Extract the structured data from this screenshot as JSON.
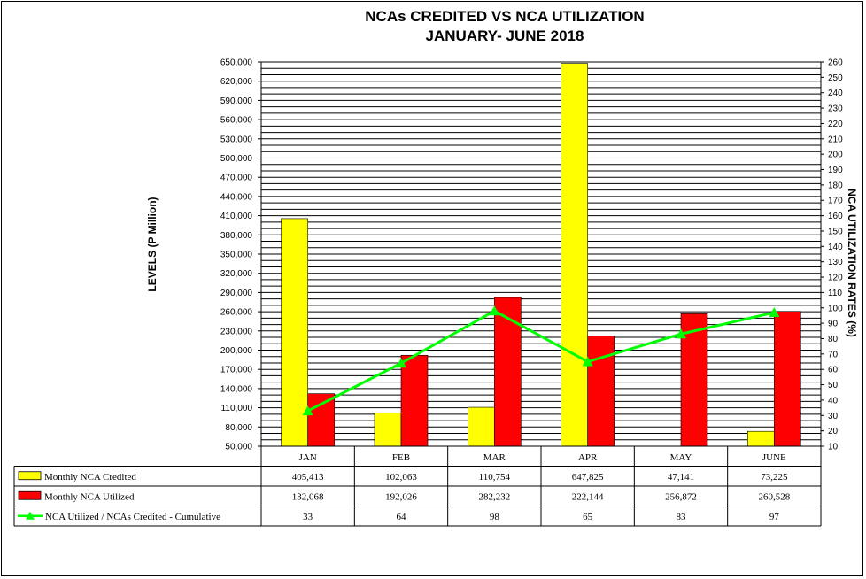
{
  "chart_data": {
    "type": "bar",
    "title": "NCAs CREDITED VS NCA UTILIZATION",
    "subtitle": "JANUARY- JUNE 2018",
    "ylabel": "LEVELS (P Million)",
    "y2label": "NCA UTILIZATION RATES (%)",
    "categories": [
      "JAN",
      "FEB",
      "MAR",
      "APR",
      "MAY",
      "JUNE"
    ],
    "ylim": [
      50000,
      650000
    ],
    "y2lim": [
      10,
      260
    ],
    "yticks": [
      "650,000",
      "620,000",
      "590,000",
      "560,000",
      "530,000",
      "500,000",
      "470,000",
      "440,000",
      "410,000",
      "380,000",
      "350,000",
      "320,000",
      "290,000",
      "260,000",
      "230,000",
      "200,000",
      "170,000",
      "140,000",
      "110,000",
      "80,000",
      "50,000"
    ],
    "y2ticks": [
      "260",
      "250",
      "240",
      "230",
      "220",
      "210",
      "200",
      "190",
      "180",
      "170",
      "160",
      "150",
      "140",
      "130",
      "120",
      "110",
      "100",
      "90",
      "80",
      "70",
      "60",
      "50",
      "40",
      "30",
      "20",
      "10"
    ],
    "series": [
      {
        "name": "Monthly NCA Credited",
        "kind": "bar",
        "color": "#ffff00",
        "values": [
          405413,
          102063,
          110754,
          647825,
          47141,
          73225
        ],
        "labels": [
          "405,413",
          "102,063",
          "110,754",
          "647,825",
          "47,141",
          "73,225"
        ]
      },
      {
        "name": "Monthly NCA Utilized",
        "kind": "bar",
        "color": "#ff0000",
        "values": [
          132068,
          192026,
          282232,
          222144,
          256872,
          260528
        ],
        "labels": [
          "132,068",
          "192,026",
          "282,232",
          "222,144",
          "256,872",
          "260,528"
        ]
      },
      {
        "name": "NCA Utilized / NCAs Credited  - Cumulative",
        "kind": "line",
        "axis": "right",
        "color": "#00ff00",
        "values": [
          33,
          64,
          98,
          65,
          83,
          97
        ],
        "labels": [
          "33",
          "64",
          "98",
          "65",
          "83",
          "97"
        ]
      }
    ],
    "grid": true,
    "legend": "data-table-below"
  }
}
